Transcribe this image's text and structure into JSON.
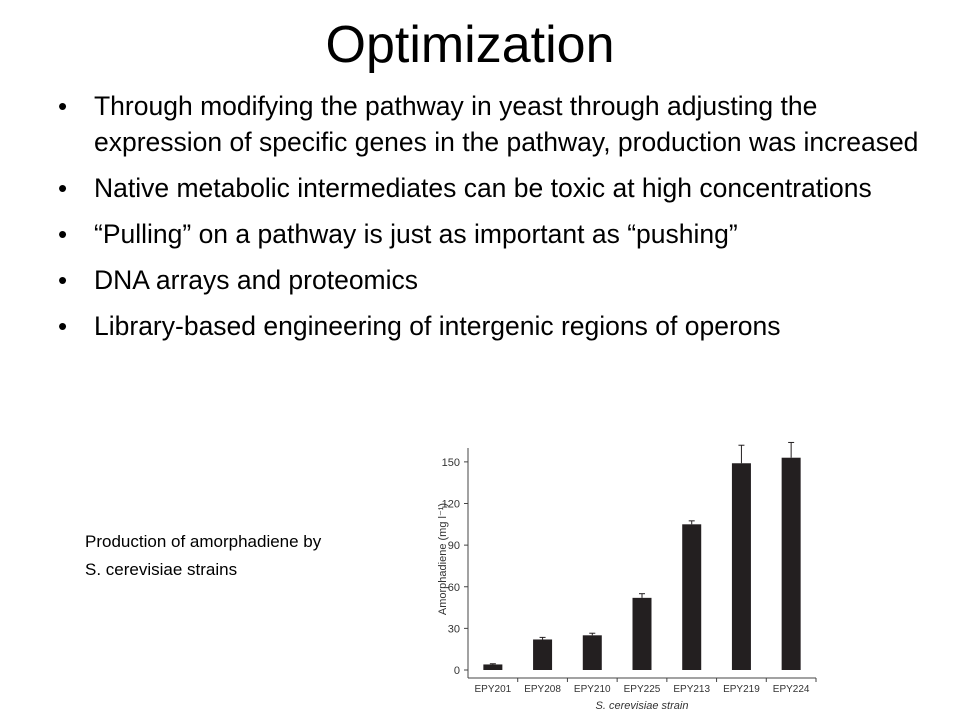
{
  "slide": {
    "title": "Optimization",
    "bullet_char": "•",
    "bullets": [
      "Through modifying the pathway in yeast through adjusting the expression of specific genes in the pathway, production was increased",
      "Native metabolic intermediates can be toxic at high concentrations",
      "“Pulling” on a pathway is just as important as “pushing”",
      "DNA arrays and proteomics",
      "Library-based engineering of intergenic regions of operons"
    ],
    "caption_lines": [
      "Production of amorphadiene by",
      "S. cerevisiae strains"
    ]
  },
  "chart_data": {
    "type": "bar",
    "categories": [
      "EPY201",
      "EPY208",
      "EPY210",
      "EPY225",
      "EPY213",
      "EPY219",
      "EPY224"
    ],
    "values": [
      4,
      22,
      25,
      52,
      105,
      149,
      153
    ],
    "errors": [
      0.5,
      1.5,
      1.5,
      3,
      2.5,
      13,
      11
    ],
    "title": "",
    "xlabel": "S. cerevisiae strain",
    "ylabel": "Amorphadiene (mg l⁻¹)",
    "ylim": [
      0,
      160
    ],
    "yticks": [
      0,
      30,
      60,
      90,
      120,
      150
    ],
    "bar_color": "#231f20",
    "grid": false,
    "legend": "none"
  }
}
